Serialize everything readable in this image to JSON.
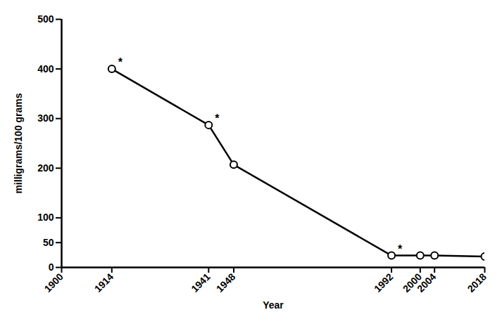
{
  "chart_data": {
    "type": "line",
    "x_label": "Year",
    "y_label": "milligrams/100 grams",
    "x": [
      1914,
      1941,
      1948,
      1992,
      2000,
      2004,
      2018
    ],
    "series": [
      {
        "name": null,
        "color": "#000000",
        "marker": "circle",
        "line_style": "solid",
        "values": [
          400,
          287,
          207,
          24,
          24,
          24,
          22
        ]
      }
    ],
    "annotations": [
      {
        "x": 1914,
        "y": 400,
        "text": "*"
      },
      {
        "x": 1941,
        "y": 287,
        "text": "*"
      },
      {
        "x": 1992,
        "y": 24,
        "text": "*"
      }
    ],
    "xlim": [
      1900,
      2018
    ],
    "xticks": [
      1900,
      1914,
      1941,
      1948,
      1992,
      2000,
      2004,
      2018
    ],
    "ylim": [
      0,
      500
    ],
    "yticks": [
      0,
      50,
      100,
      200,
      300,
      400,
      500
    ],
    "grid": false
  }
}
